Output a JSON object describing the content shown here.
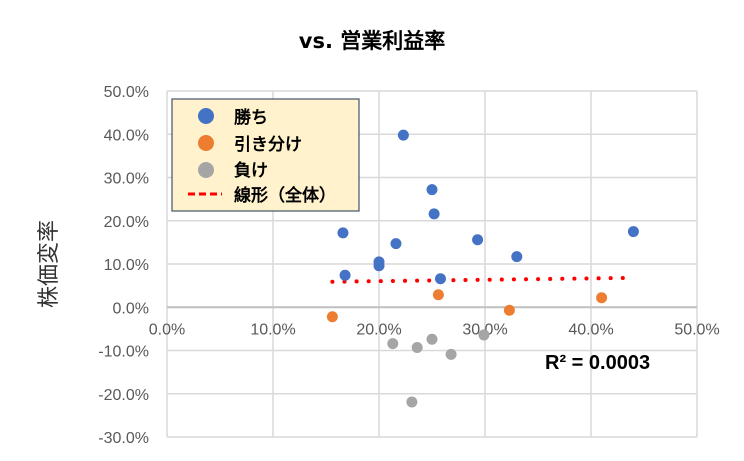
{
  "chart_data": {
    "type": "scatter",
    "title": "vs. 営業利益率",
    "xlabel": "",
    "ylabel": "株価変率",
    "xlim": [
      0,
      50
    ],
    "ylim": [
      -30,
      50
    ],
    "xticks": [
      "0.0%",
      "10.0%",
      "20.0%",
      "30.0%",
      "40.0%",
      "50.0%"
    ],
    "xtick_values": [
      0,
      10,
      20,
      30,
      40,
      50
    ],
    "yticks": [
      "50.0%",
      "40.0%",
      "30.0%",
      "20.0%",
      "10.0%",
      "0.0%",
      "-10.0%",
      "-20.0%",
      "-30.0%"
    ],
    "ytick_values": [
      50,
      40,
      30,
      20,
      10,
      0,
      -10,
      -20,
      -30
    ],
    "grid": true,
    "legend_placement": "top-left",
    "series": [
      {
        "name": "勝ち",
        "color": "#4472C4",
        "x": [
          22.3,
          25.0,
          25.2,
          16.6,
          21.6,
          29.3,
          33.0,
          44.0,
          20.0,
          20.0,
          16.8,
          25.8
        ],
        "y": [
          39.8,
          27.2,
          21.6,
          17.2,
          14.7,
          15.6,
          11.7,
          17.5,
          10.5,
          9.6,
          7.4,
          6.6
        ]
      },
      {
        "name": "引き分け",
        "color": "#ED7D31",
        "x": [
          25.6,
          41.0,
          32.3,
          15.6
        ],
        "y": [
          2.9,
          2.2,
          -0.7,
          -2.2
        ]
      },
      {
        "name": "負け",
        "color": "#A5A5A5",
        "x": [
          21.3,
          23.6,
          25.0,
          29.9,
          26.8,
          23.1
        ],
        "y": [
          -8.4,
          -9.3,
          -7.4,
          -6.4,
          -10.9,
          -21.9
        ]
      }
    ],
    "trendline": {
      "name": "線形（全体）",
      "color": "#FF0000",
      "x": [
        15.6,
        44.0
      ],
      "y": [
        5.9,
        6.8
      ]
    },
    "annotation": "R² = 0.0003"
  }
}
